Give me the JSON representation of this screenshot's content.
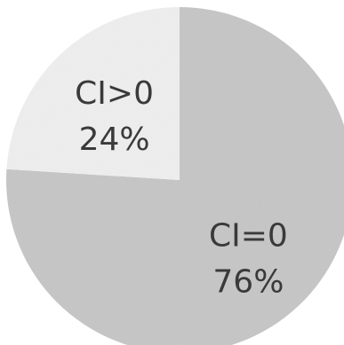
{
  "chart_data": {
    "type": "pie",
    "title": "",
    "slices": [
      {
        "label": "CI=0",
        "percent_label": "76%",
        "value": 76,
        "color": "#c9c9c9"
      },
      {
        "label": "CI>0",
        "percent_label": "24%",
        "value": 24,
        "color": "#f1f1f1"
      }
    ],
    "legend": "none",
    "start_angle_deg": 0,
    "direction": "clockwise"
  }
}
